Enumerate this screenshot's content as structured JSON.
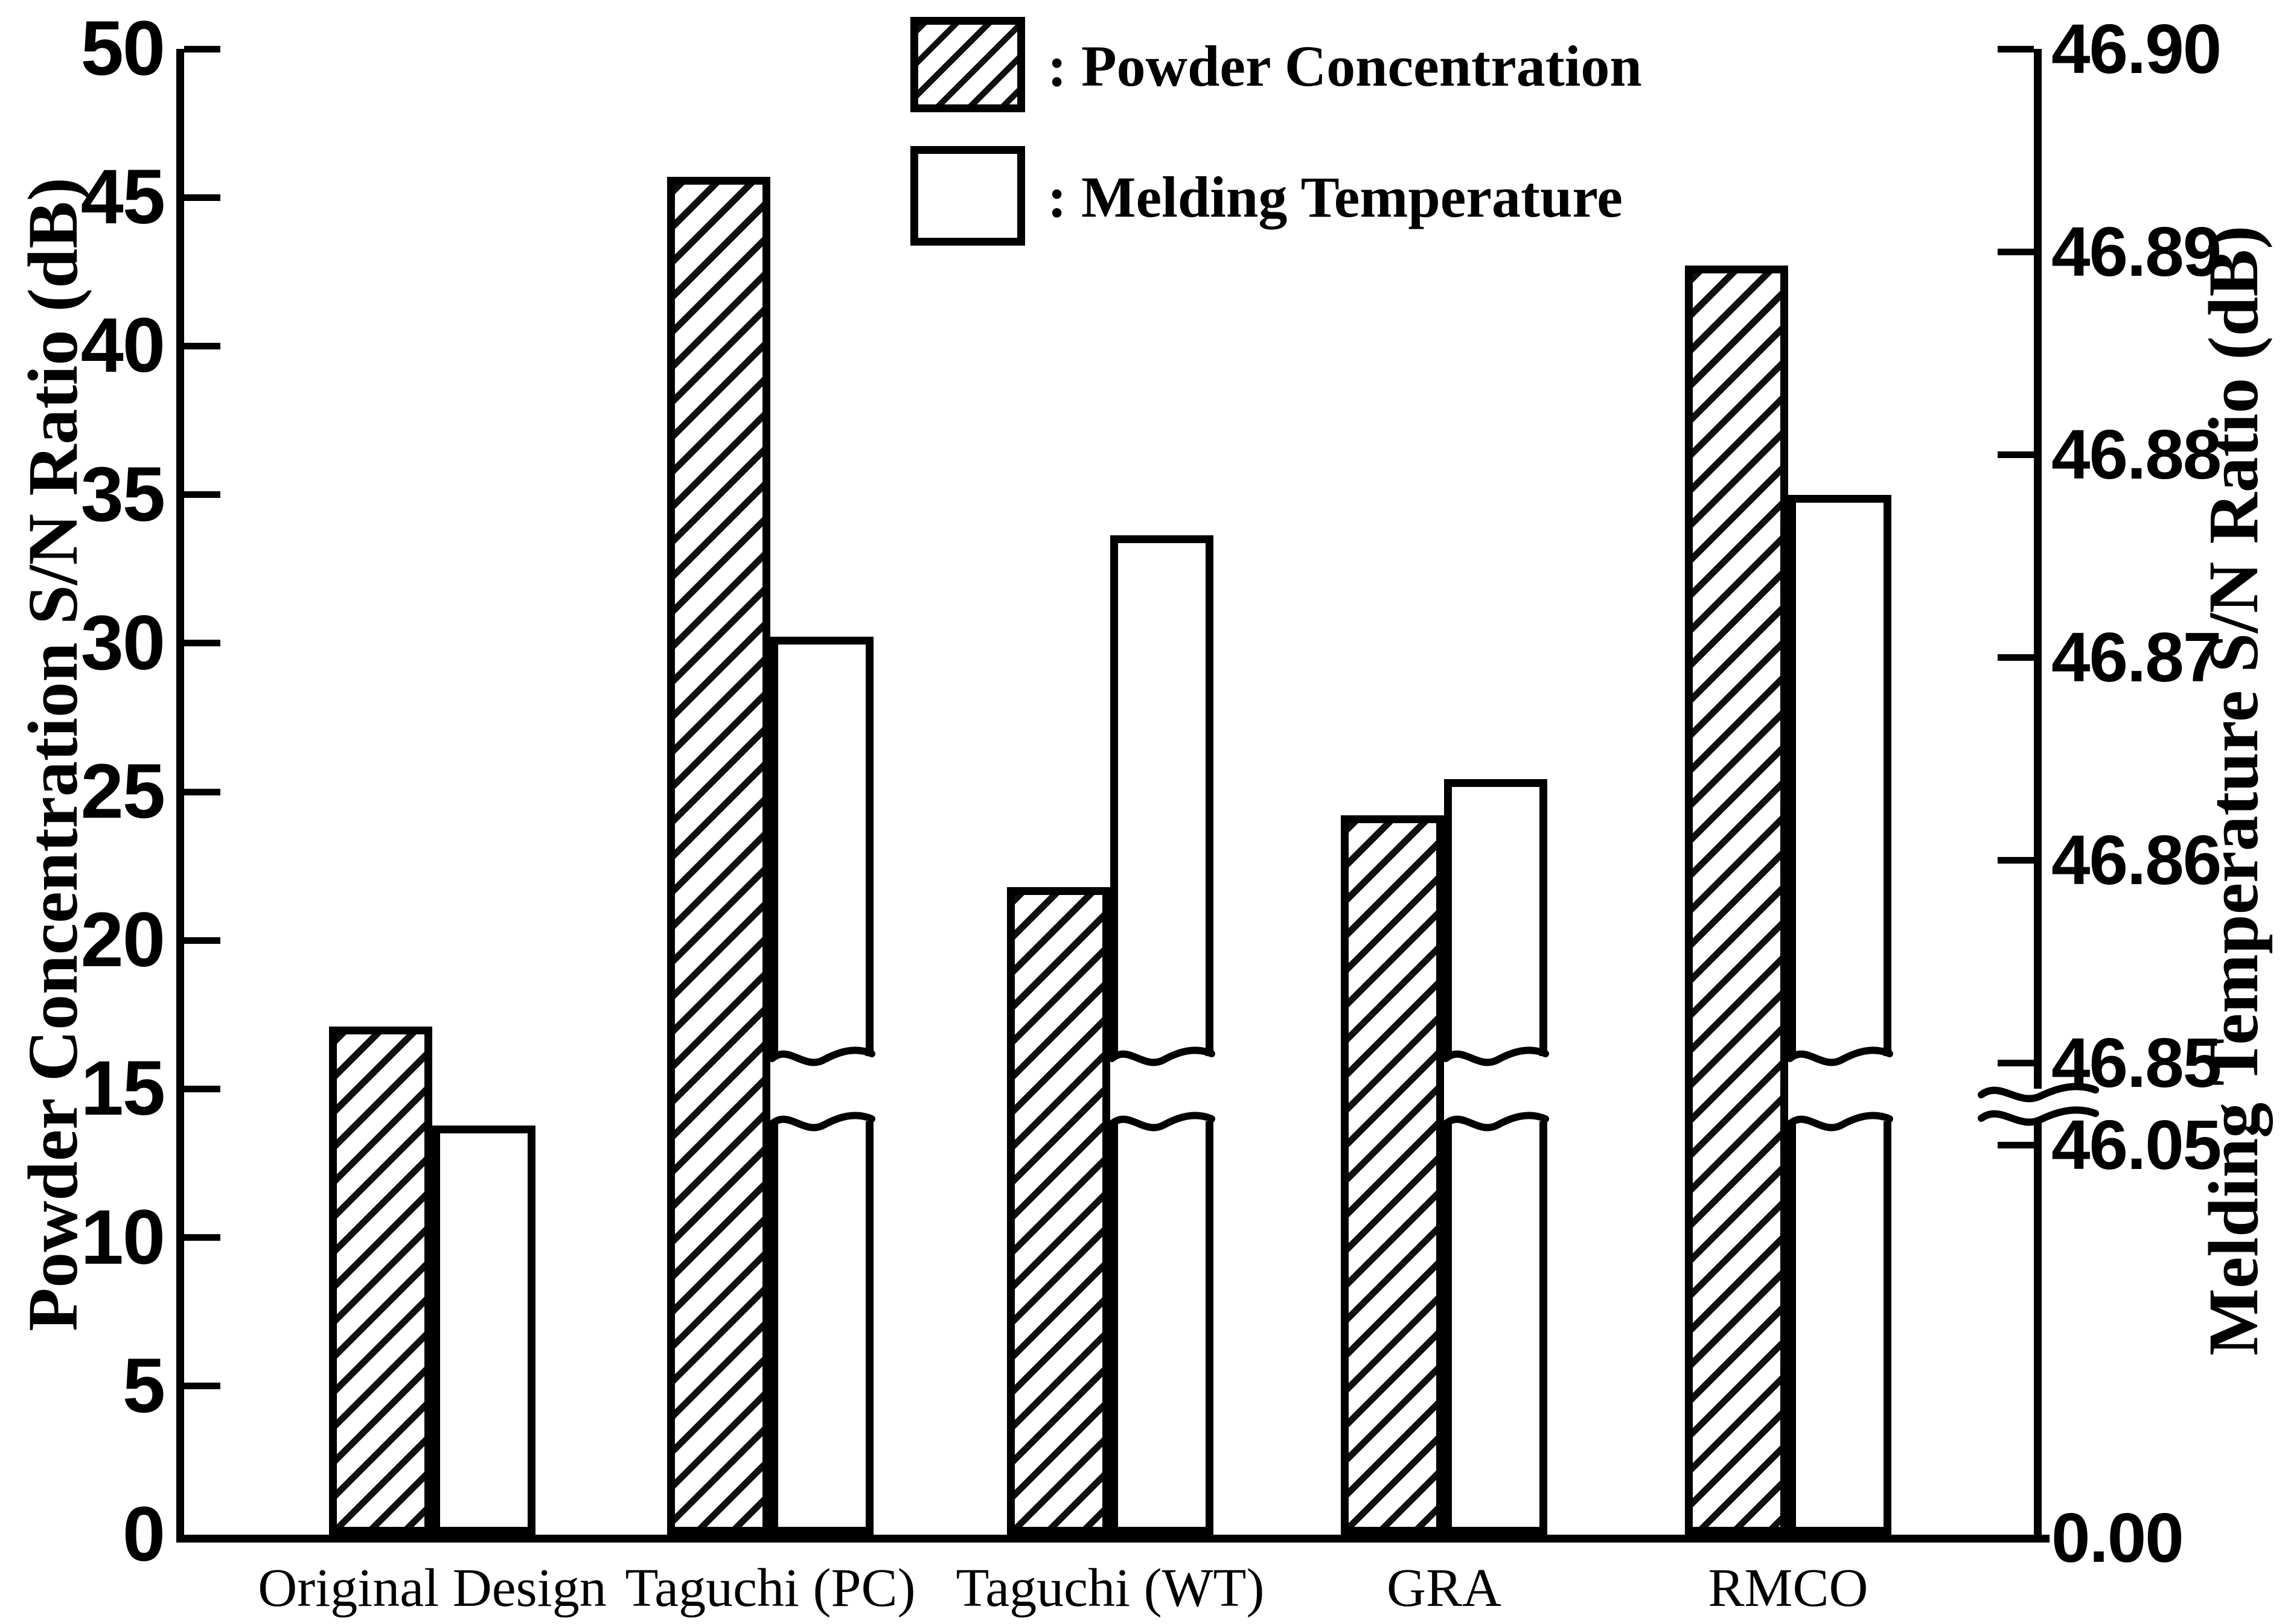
{
  "chart_data": {
    "type": "bar",
    "title": "",
    "categories": [
      "Original Design",
      "Taguchi (PC)",
      "Taguchi (WT)",
      "GRA",
      "RMCO"
    ],
    "series": [
      {
        "name": "Powder Concentration",
        "axis": "left",
        "style": "hatched",
        "values": [
          17.1,
          45.7,
          21.8,
          24.2,
          42.7
        ]
      },
      {
        "name": "Melding Temperature",
        "axis": "right",
        "style": "open",
        "values": [
          46.05,
          46.871,
          46.876,
          46.864,
          46.878
        ]
      }
    ],
    "left_axis": {
      "title": "Powder Concentration S/N Ratio (dB)",
      "ticks": [
        0,
        5,
        10,
        15,
        20,
        25,
        30,
        35,
        40,
        45,
        50
      ],
      "range": [
        0,
        50
      ]
    },
    "right_axis": {
      "title": "Melding Temperature S/N Ratio (dB)",
      "upper_ticks": [
        "46.90",
        "46.89",
        "46.88",
        "46.87",
        "46.86",
        "46.85"
      ],
      "lower_tick_label": "46.05",
      "bottom_label": "0.00",
      "axis_break": [
        46.05,
        46.85
      ]
    },
    "legend": [
      {
        "style": "hatched",
        "label": ": Powder Concentration"
      },
      {
        "style": "open",
        "label": ": Melding Temperature"
      }
    ],
    "layout_hints": {
      "grid": false,
      "legend_position": "top-center",
      "note": "white bars and right axis are drawn with a scale break between 46.05 and 46.85 dB"
    }
  }
}
